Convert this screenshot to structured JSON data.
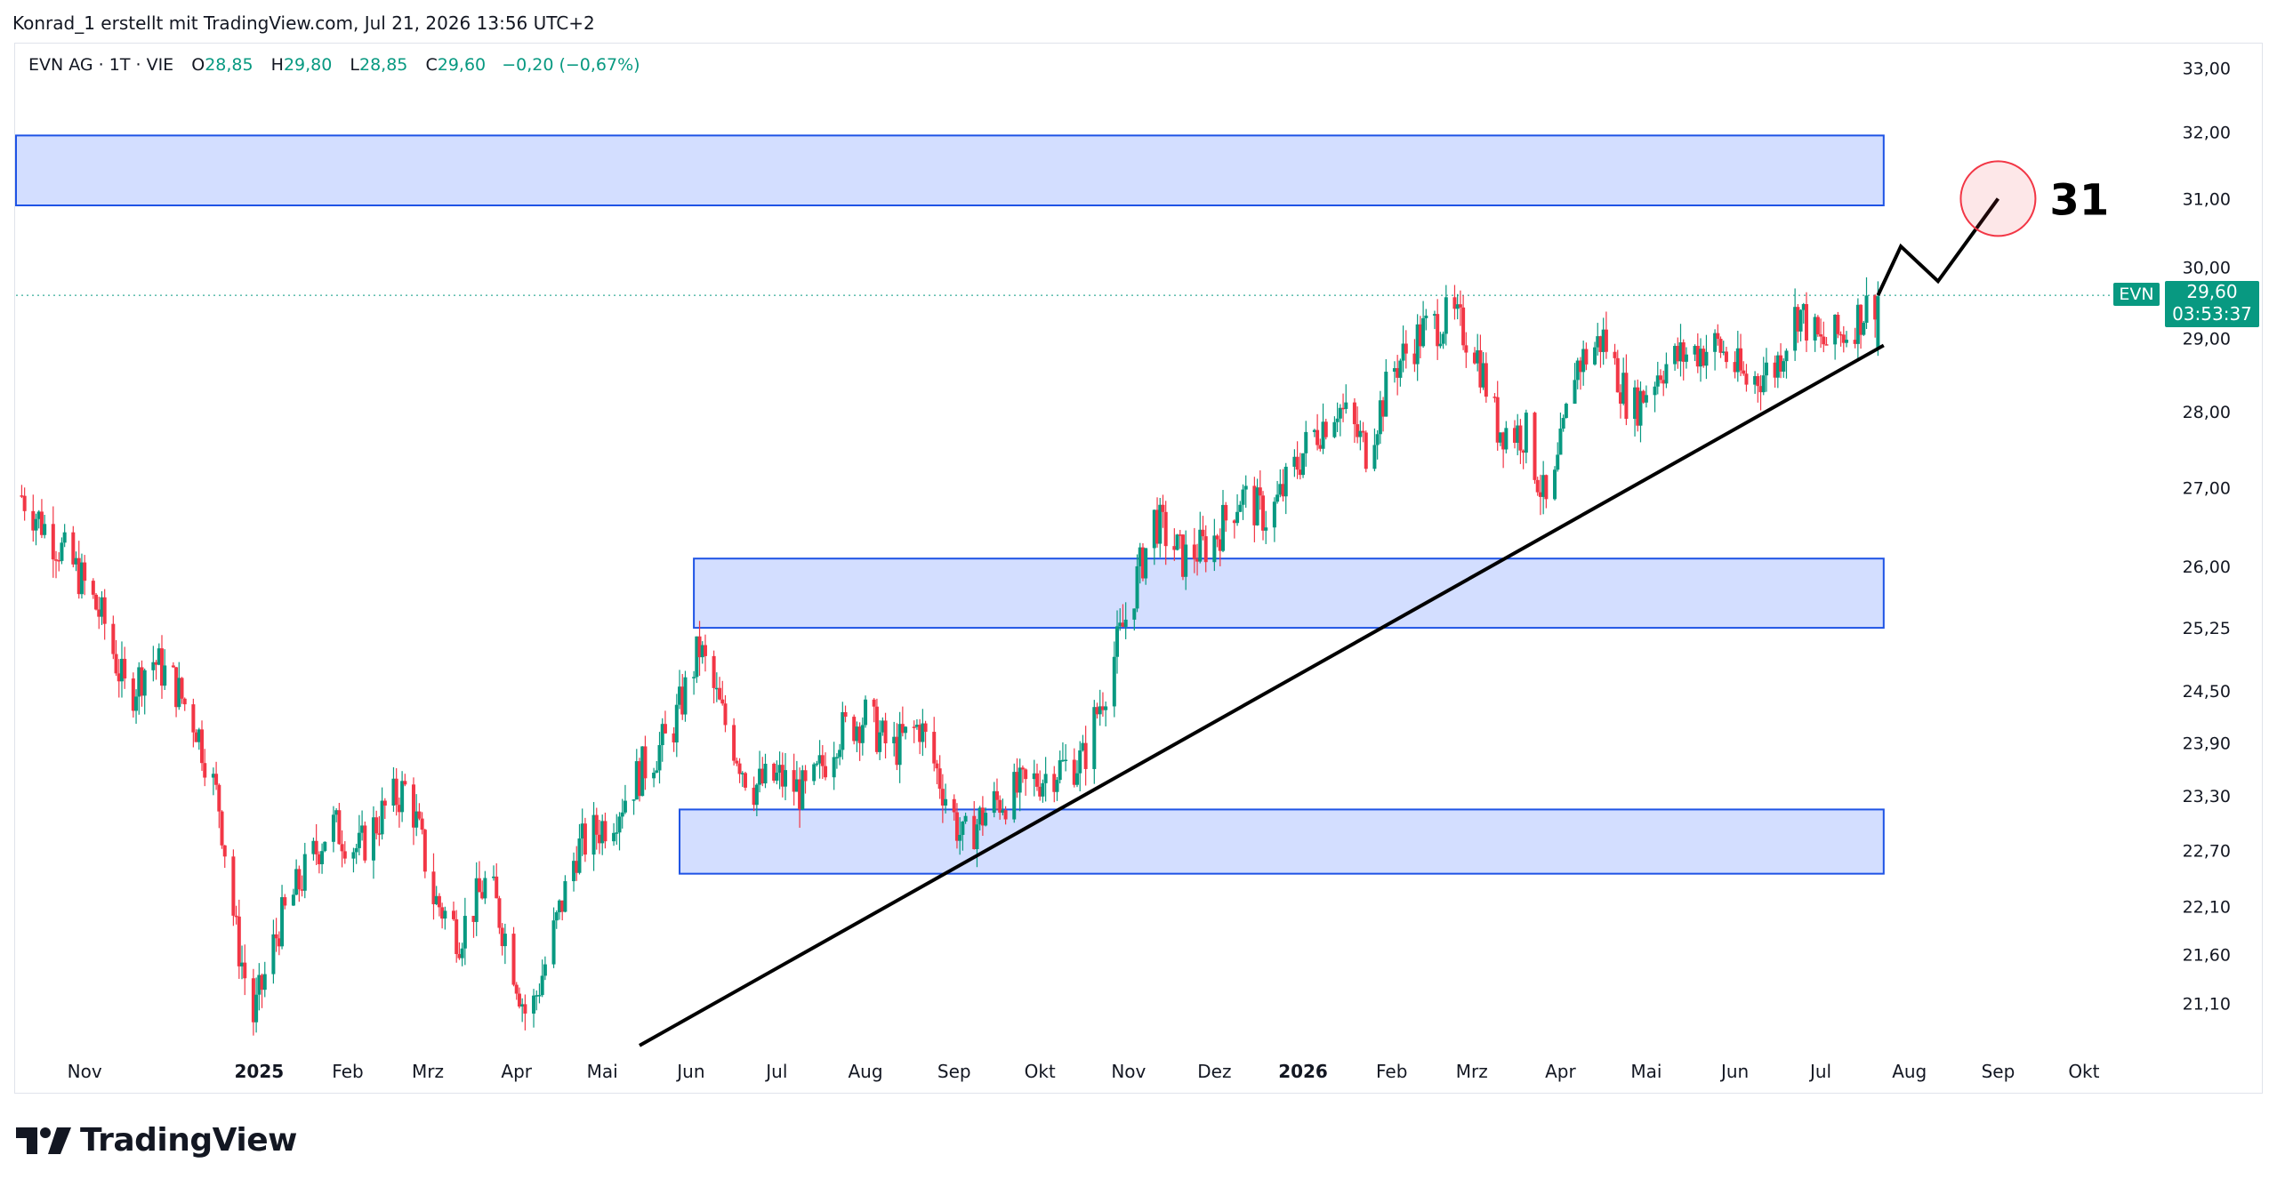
{
  "attribution": "Konrad_1 erstellt mit TradingView.com, Jul 21, 2026 13:56 UTC+2",
  "legend": {
    "symbol": "EVN AG · 1T · VIE",
    "open_label": "O",
    "open": "28,85",
    "high_label": "H",
    "high": "29,80",
    "low_label": "L",
    "low": "28,85",
    "close_label": "C",
    "close": "29,60",
    "change": "−0,20 (−0,67%)"
  },
  "price_label": {
    "symbol": "EVN",
    "price": "29,60",
    "countdown": "03:53:37"
  },
  "annotation_target": "31",
  "footer": {
    "brand": "TradingView"
  },
  "colors": {
    "up": "#089981",
    "down": "#f23645",
    "zone_fill": "#d1dcff",
    "zone_stroke": "#1e53e5",
    "target_circle": "#f23645"
  },
  "chart_data": {
    "type": "candlestick",
    "symbol": "EVN",
    "scale": "log",
    "ylim": [
      20.6,
      33.3
    ],
    "y_ticks": [
      "33,00",
      "32,00",
      "31,00",
      "30,00",
      "29,00",
      "28,00",
      "27,00",
      "26,00",
      "25,25",
      "24,50",
      "23,90",
      "23,30",
      "22,70",
      "22,10",
      "21,60",
      "21,10"
    ],
    "y_tick_values": [
      33.0,
      32.0,
      31.0,
      30.0,
      29.0,
      28.0,
      27.0,
      26.0,
      25.25,
      24.5,
      23.9,
      23.3,
      22.7,
      22.1,
      21.6,
      21.1
    ],
    "x_ticks": [
      {
        "label": "Nov",
        "date": "2024-11-01",
        "bold": false
      },
      {
        "label": "2025",
        "date": "2025-01-01",
        "bold": true
      },
      {
        "label": "Feb",
        "date": "2025-02-01",
        "bold": false
      },
      {
        "label": "Mrz",
        "date": "2025-03-01",
        "bold": false
      },
      {
        "label": "Apr",
        "date": "2025-04-01",
        "bold": false
      },
      {
        "label": "Mai",
        "date": "2025-05-01",
        "bold": false
      },
      {
        "label": "Jun",
        "date": "2025-06-01",
        "bold": false
      },
      {
        "label": "Jul",
        "date": "2025-07-01",
        "bold": false
      },
      {
        "label": "Aug",
        "date": "2025-08-01",
        "bold": false
      },
      {
        "label": "Sep",
        "date": "2025-09-01",
        "bold": false
      },
      {
        "label": "Okt",
        "date": "2025-10-01",
        "bold": false
      },
      {
        "label": "Nov",
        "date": "2025-11-01",
        "bold": false
      },
      {
        "label": "Dez",
        "date": "2025-12-01",
        "bold": false
      },
      {
        "label": "2026",
        "date": "2026-01-01",
        "bold": true
      },
      {
        "label": "Feb",
        "date": "2026-02-01",
        "bold": false
      },
      {
        "label": "Mrz",
        "date": "2026-03-01",
        "bold": false
      },
      {
        "label": "Apr",
        "date": "2026-04-01",
        "bold": false
      },
      {
        "label": "Mai",
        "date": "2026-05-01",
        "bold": false
      },
      {
        "label": "Jun",
        "date": "2026-06-01",
        "bold": false
      },
      {
        "label": "Jul",
        "date": "2026-07-01",
        "bold": false
      },
      {
        "label": "Aug",
        "date": "2026-08-01",
        "bold": false
      },
      {
        "label": "Sep",
        "date": "2026-09-01",
        "bold": false
      },
      {
        "label": "Okt",
        "date": "2026-10-01",
        "bold": false
      }
    ],
    "last_price": 29.6,
    "close_path": [
      [
        "2024-10-10",
        26.9
      ],
      [
        "2024-10-20",
        26.4
      ],
      [
        "2024-10-30",
        25.9
      ],
      [
        "2024-11-08",
        25.3
      ],
      [
        "2024-11-16",
        24.4
      ],
      [
        "2024-11-24",
        24.9
      ],
      [
        "2024-12-02",
        24.6
      ],
      [
        "2024-12-10",
        24.1
      ],
      [
        "2024-12-18",
        23.2
      ],
      [
        "2024-12-24",
        21.8
      ],
      [
        "2024-12-30",
        20.95
      ],
      [
        "2025-01-08",
        21.9
      ],
      [
        "2025-01-16",
        22.4
      ],
      [
        "2025-01-26",
        23.0
      ],
      [
        "2025-02-05",
        22.7
      ],
      [
        "2025-02-15",
        23.2
      ],
      [
        "2025-02-22",
        23.4
      ],
      [
        "2025-03-03",
        22.2
      ],
      [
        "2025-03-12",
        21.8
      ],
      [
        "2025-03-22",
        22.4
      ],
      [
        "2025-03-30",
        21.6
      ],
      [
        "2025-04-05",
        20.9
      ],
      [
        "2025-04-12",
        21.6
      ],
      [
        "2025-04-22",
        22.7
      ],
      [
        "2025-05-05",
        23.1
      ],
      [
        "2025-05-15",
        23.6
      ],
      [
        "2025-05-25",
        24.0
      ],
      [
        "2025-06-04",
        25.0
      ],
      [
        "2025-06-12",
        24.2
      ],
      [
        "2025-06-22",
        23.4
      ],
      [
        "2025-07-02",
        23.5
      ],
      [
        "2025-07-12",
        23.3
      ],
      [
        "2025-07-22",
        24.0
      ],
      [
        "2025-08-01",
        24.2
      ],
      [
        "2025-08-10",
        23.8
      ],
      [
        "2025-08-20",
        24.1
      ],
      [
        "2025-08-28",
        23.4
      ],
      [
        "2025-09-04",
        22.8
      ],
      [
        "2025-09-14",
        23.2
      ],
      [
        "2025-09-26",
        23.4
      ],
      [
        "2025-10-06",
        23.6
      ],
      [
        "2025-10-16",
        23.7
      ],
      [
        "2025-10-26",
        24.8
      ],
      [
        "2025-11-02",
        25.6
      ],
      [
        "2025-11-10",
        26.6
      ],
      [
        "2025-11-20",
        26.1
      ],
      [
        "2025-11-30",
        26.3
      ],
      [
        "2025-12-10",
        26.9
      ],
      [
        "2025-12-20",
        26.6
      ],
      [
        "2026-01-03",
        27.6
      ],
      [
        "2026-01-13",
        28.1
      ],
      [
        "2026-01-23",
        27.5
      ],
      [
        "2026-02-02",
        28.6
      ],
      [
        "2026-02-12",
        29.1
      ],
      [
        "2026-02-22",
        29.3
      ],
      [
        "2026-03-02",
        28.9
      ],
      [
        "2026-03-10",
        27.8
      ],
      [
        "2026-03-20",
        27.7
      ],
      [
        "2026-03-28",
        26.6
      ],
      [
        "2026-04-06",
        28.6
      ],
      [
        "2026-04-16",
        29.0
      ],
      [
        "2026-04-26",
        28.0
      ],
      [
        "2026-05-06",
        28.6
      ],
      [
        "2026-05-16",
        28.8
      ],
      [
        "2026-05-26",
        28.9
      ],
      [
        "2026-06-05",
        28.4
      ],
      [
        "2026-06-15",
        28.6
      ],
      [
        "2026-06-23",
        29.4
      ],
      [
        "2026-07-01",
        28.9
      ],
      [
        "2026-07-10",
        29.1
      ],
      [
        "2026-07-21",
        29.6
      ]
    ],
    "zones": [
      {
        "date_from": "2024-10-08",
        "date_to": "2026-07-23",
        "price_low": 30.9,
        "price_high": 31.95
      },
      {
        "date_from": "2025-06-02",
        "date_to": "2026-07-23",
        "price_low": 25.25,
        "price_high": 26.1
      },
      {
        "date_from": "2025-05-28",
        "date_to": "2026-07-23",
        "price_low": 22.45,
        "price_high": 23.15
      }
    ],
    "trendline": [
      [
        "2025-05-14",
        20.68
      ],
      [
        "2026-07-23",
        28.9
      ]
    ],
    "projection": [
      [
        "2026-07-21",
        29.6
      ],
      [
        "2026-07-29",
        30.3
      ],
      [
        "2026-08-11",
        29.8
      ],
      [
        "2026-09-01",
        31.0
      ]
    ],
    "target_price": 31.0
  }
}
